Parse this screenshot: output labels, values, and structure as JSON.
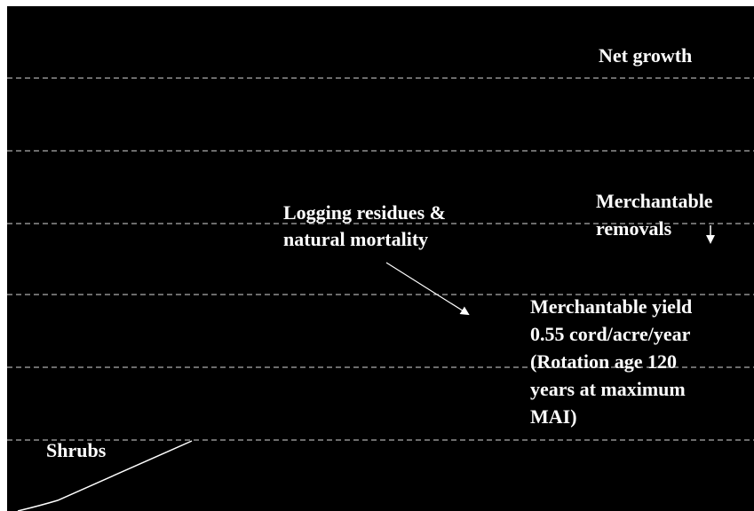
{
  "annotations": {
    "net_growth": [
      "Net growth"
    ],
    "merchantable_removals": [
      "Merchantable",
      "removals"
    ],
    "logging_residues": [
      "Logging residues &",
      "natural mortality"
    ],
    "merchantable_yield": [
      "Merchantable yield",
      "0.55 cord/acre/year",
      "(Rotation age 120",
      "years at maximum",
      "MAI)"
    ],
    "shrubs": [
      "Shrubs"
    ]
  }
}
